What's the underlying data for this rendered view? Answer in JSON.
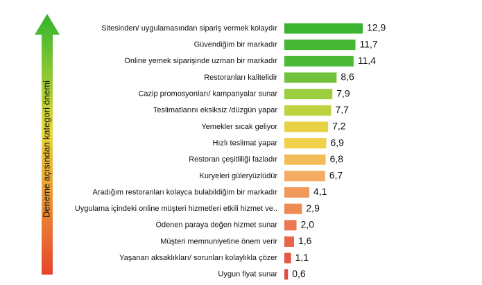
{
  "chart_data": {
    "type": "bar",
    "orientation": "horizontal",
    "y_label": "Deneme açısından kategori önemi",
    "categories": [
      "Sitesinden/ uygulamasından sipariş vermek kolaydır",
      "Güvendiğim bir markadır",
      "Online yemek siparişinde uzman bir markadır",
      "Restoranları kalitelidir",
      "Cazip promosyonları/ kampanyalar sunar",
      "Teslimatlarını eksiksiz /düzgün yapar",
      "Yemekler sıcak geliyor",
      "Hızlı teslimat yapar",
      "Restoran çeşitliliği fazladır",
      "Kuryeleri güleryüzlüdür",
      "Aradığım restoranları kolayca bulabildiğim bir markadır",
      "Uygulama içindeki online müşteri hizmetleri etkili hizmet ve..",
      "Ödenen paraya değen hizmet sunar",
      "Müşteri memnuniyetine önem verir",
      "Yaşanan aksaklıkları/ sorunları kolaylıkla çözer",
      "Uygun fiyat sunar"
    ],
    "values": [
      12.9,
      11.7,
      11.4,
      8.6,
      7.9,
      7.7,
      7.2,
      6.9,
      6.8,
      6.7,
      4.1,
      2.9,
      2.0,
      1.6,
      1.1,
      0.6
    ],
    "value_labels": [
      "12,9",
      "11,7",
      "11,4",
      "8,6",
      "7,9",
      "7,7",
      "7,2",
      "6,9",
      "6,8",
      "6,7",
      "4,1",
      "2,9",
      "2,0",
      "1,6",
      "1,1",
      "0,6"
    ],
    "colors": [
      "#3cb431",
      "#44b733",
      "#4cba35",
      "#72c13c",
      "#9ccd3f",
      "#bfd341",
      "#e6d244",
      "#f1d04a",
      "#f4bc58",
      "#f2ad60",
      "#ef9a5a",
      "#ef8a55",
      "#ec7750",
      "#e9654a",
      "#e55845",
      "#e04a40"
    ]
  }
}
